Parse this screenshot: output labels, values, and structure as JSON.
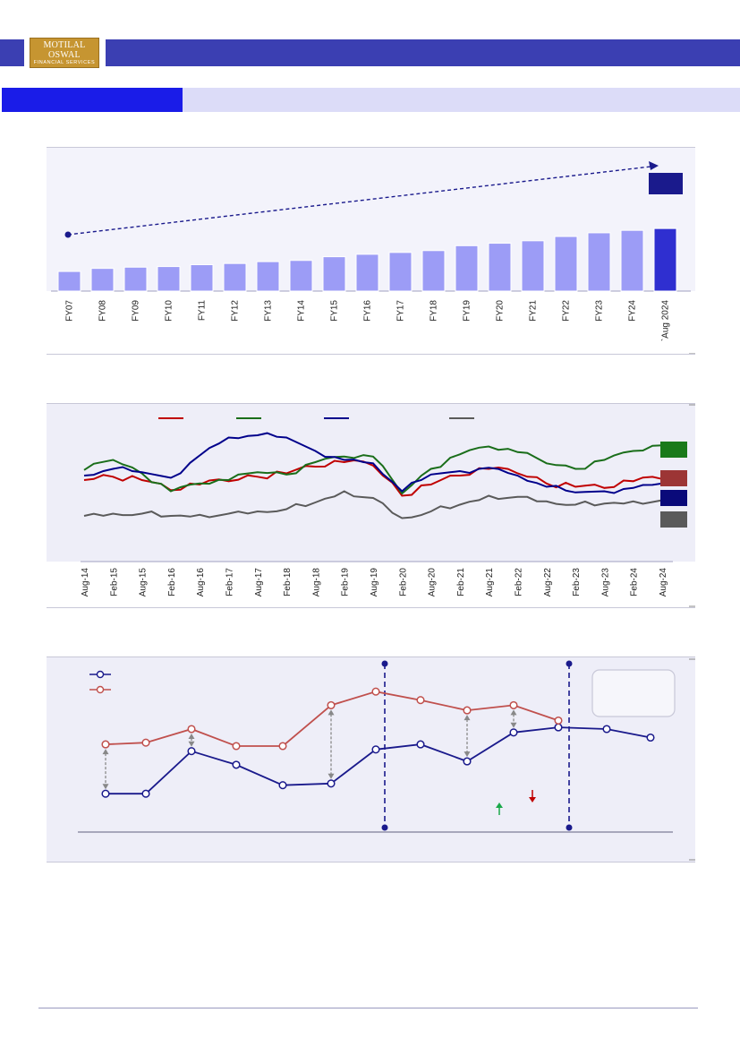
{
  "header": {
    "logo_line1": "MOTILAL OSWAL",
    "logo_line2": "FINANCIAL SERVICES"
  },
  "colors": {
    "brand_blue": "#3b3fb2",
    "section_blue": "#1a1ce8",
    "section_light": "#dcdcf8",
    "logo_gold": "#c69531"
  },
  "chart_data": [
    {
      "type": "bar",
      "categories": [
        "FY07",
        "FY08",
        "FY09",
        "FY10",
        "FY11",
        "FY12",
        "FY13",
        "FY14",
        "FY15",
        "FY16",
        "FY17",
        "FY18",
        "FY19",
        "FY20",
        "FY21",
        "FY22",
        "FY23",
        "FY24",
        "`Aug 2024"
      ],
      "values": [
        32,
        37,
        39,
        40,
        43,
        45,
        48,
        50,
        56,
        60,
        63,
        66,
        74,
        78,
        82,
        89,
        95,
        99,
        102
      ],
      "highlight_last": true,
      "trend_arrow": true,
      "colors": {
        "bar": "#9c9cf6",
        "highlight": "#2f2fd0",
        "trend": "#1a1a8c"
      }
    },
    {
      "type": "line",
      "categories": [
        "Aug-14",
        "Feb-15",
        "Aug-15",
        "Feb-16",
        "Aug-16",
        "Feb-17",
        "Aug-17",
        "Feb-18",
        "Aug-18",
        "Feb-19",
        "Aug-19",
        "Feb-20",
        "Aug-20",
        "Feb-21",
        "Aug-21",
        "Feb-22",
        "Aug-22",
        "Feb-23",
        "Aug-23",
        "Feb-24",
        "Aug-24"
      ],
      "series": [
        {
          "color": "#c00000",
          "values": [
            52,
            55,
            52,
            43,
            48,
            51,
            55,
            58,
            64,
            68,
            65,
            38,
            48,
            56,
            62,
            58,
            49,
            46,
            45,
            51,
            53
          ]
        },
        {
          "color": "#1a6e1a",
          "values": [
            61,
            70,
            58,
            42,
            49,
            52,
            59,
            57,
            68,
            73,
            73,
            40,
            62,
            75,
            82,
            77,
            67,
            62,
            70,
            78,
            83
          ]
        },
        {
          "color": "#00008b",
          "values": [
            56,
            62,
            59,
            54,
            74,
            90,
            92,
            90,
            78,
            70,
            67,
            42,
            57,
            60,
            63,
            56,
            46,
            41,
            42,
            45,
            49
          ]
        },
        {
          "color": "#5a5a5a",
          "values": [
            20,
            22,
            22,
            20,
            21,
            22,
            24,
            26,
            32,
            42,
            36,
            18,
            24,
            30,
            38,
            37,
            33,
            30,
            31,
            33,
            34
          ]
        }
      ],
      "end_markers": [
        "#1a7a1a",
        "#9c3535",
        "#0a0a7a",
        "#5a5a5a"
      ]
    },
    {
      "type": "line",
      "x": [
        0,
        1,
        2,
        3,
        4,
        5,
        6,
        7,
        8,
        9,
        10,
        11,
        12,
        13
      ],
      "series": [
        {
          "color": "#1a1a8c",
          "values": [
            12,
            12,
            37,
            29,
            17,
            18,
            38,
            41,
            31,
            48,
            51,
            50,
            45,
            null
          ]
        },
        {
          "color": "#c0504d",
          "values": [
            41,
            42,
            50,
            40,
            40,
            64,
            72,
            67,
            61,
            64,
            55,
            null,
            null,
            null
          ]
        }
      ],
      "x_positions": [
        118,
        163,
        214,
        264,
        316,
        370,
        420,
        470,
        522,
        574,
        624,
        678,
        727
      ],
      "dividers": [
        430,
        636
      ],
      "colors": {
        "up_arrow": "#1aa84a",
        "down_arrow": "#c00000",
        "gap_arrow": "#888888"
      }
    }
  ]
}
